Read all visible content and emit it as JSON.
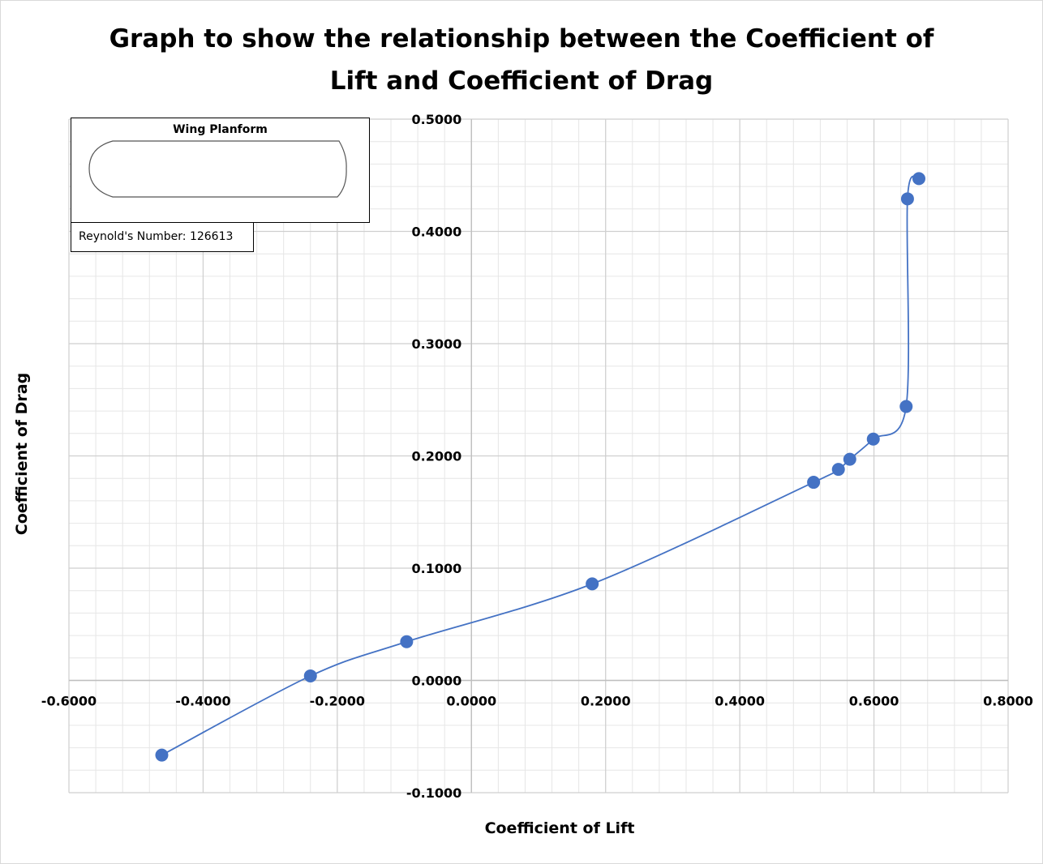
{
  "title_line1": "Graph to show the relationship between the Coefficient of",
  "title_line2": "Lift and Coefficient of Drag",
  "planform": {
    "title": "Wing Planform"
  },
  "reynolds": {
    "text": "Reynold's Number: 126613"
  },
  "chart_data": {
    "type": "scatter",
    "title": "Graph to show the relationship between the Coefficient of Lift and Coefficient of Drag",
    "xlabel": "Coefficient of Lift",
    "ylabel": "Coefficient of Drag",
    "xlim": [
      -0.6,
      0.8
    ],
    "ylim": [
      -0.1,
      0.5
    ],
    "x_ticks": [
      -0.6,
      -0.4,
      -0.2,
      0.0,
      0.2,
      0.4,
      0.6,
      0.8
    ],
    "y_ticks": [
      -0.1,
      0.0,
      0.1,
      0.2,
      0.3,
      0.4,
      0.5
    ],
    "x_tick_labels": [
      "-0.6000",
      "-0.4000",
      "-0.2000",
      "0.0000",
      "0.2000",
      "0.4000",
      "0.6000",
      "0.8000"
    ],
    "y_tick_labels": [
      "-0.1000",
      "0.0000",
      "0.1000",
      "0.2000",
      "0.3000",
      "0.4000",
      "0.5000"
    ],
    "grid": true,
    "smoothed_line": true,
    "series_color": "#4472c4",
    "series": [
      {
        "points": [
          {
            "x": -0.4616,
            "y": -0.0665
          },
          {
            "x": -0.24,
            "y": 0.004
          },
          {
            "x": -0.0966,
            "y": 0.0345
          },
          {
            "x": 0.18,
            "y": 0.086
          },
          {
            "x": 0.51,
            "y": 0.1765
          },
          {
            "x": 0.547,
            "y": 0.188
          },
          {
            "x": 0.564,
            "y": 0.197
          },
          {
            "x": 0.599,
            "y": 0.215
          },
          {
            "x": 0.648,
            "y": 0.244
          },
          {
            "x": 0.65,
            "y": 0.429
          },
          {
            "x": 0.667,
            "y": 0.447
          }
        ]
      }
    ]
  }
}
